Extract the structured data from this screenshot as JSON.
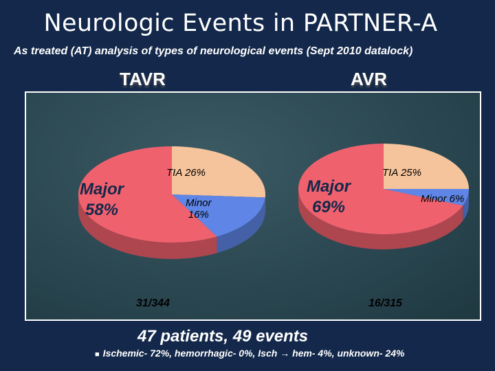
{
  "title": "Neurologic Events in PARTNER-A",
  "subtitle": "As treated (AT) analysis of types of neurological events (Sept 2010 datalock)",
  "colors": {
    "major": "#f0616e",
    "tia": "#f6c49c",
    "minor": "#5f86e6",
    "background": "#13284a",
    "panel": "#2b4852"
  },
  "chart_data": [
    {
      "type": "pie",
      "title": "TAVR",
      "categories": [
        "Major",
        "TIA",
        "Minor"
      ],
      "values": [
        58,
        26,
        16
      ],
      "value_labels": [
        "Major\n58%",
        "TIA 26%",
        "Minor\n16%"
      ],
      "annotation": "31/344"
    },
    {
      "type": "pie",
      "title": "AVR",
      "categories": [
        "Major",
        "TIA",
        "Minor"
      ],
      "values": [
        69,
        25,
        6
      ],
      "value_labels": [
        "Major\n69%",
        "TIA 25%",
        "Minor 6%"
      ],
      "annotation": "16/315"
    }
  ],
  "summary": "47 patients, 49 events",
  "bullet": "Ischemic- 72%, hemorrhagic- 0%, Isch → hem- 4%, unknown- 24%"
}
